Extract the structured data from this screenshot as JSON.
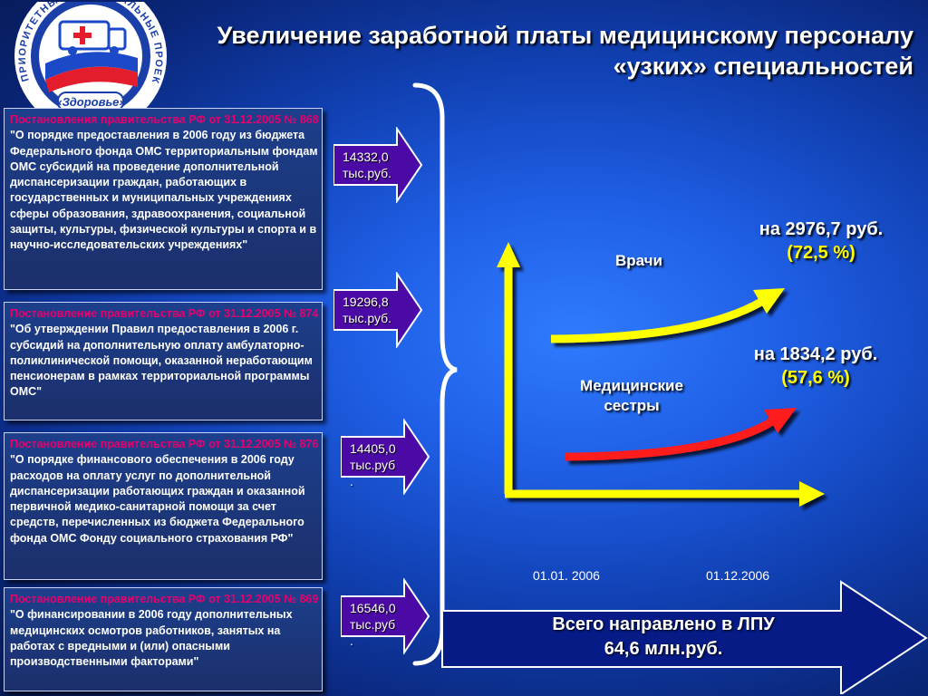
{
  "logo": {
    "ring_text": "ПРИОРИТЕТНЫЕ НАЦИОНАЛЬНЫЕ ПРОЕКТЫ",
    "bottom_text": "«Здоровье»"
  },
  "title": {
    "line1": "Увеличение заработной платы медицинскому персоналу",
    "line2": "«узких» специальностей"
  },
  "documents": [
    {
      "ref": "Постановления правительства РФ от 31.12.2005  № 868",
      "text": " \"О порядке предоставления в 2006 году из бюджета Федерального фонда ОМС территориальным фондам ОМС субсидий на проведение дополнительной диспансеризации граждан, работающих в государственных и муниципальных учреждениях  сферы образования, здравоохранения, социальной защиты, культуры, физической культуры и спорта и в научно-исследовательских учреждениях\""
    },
    {
      "ref": "Постановление правительства РФ от 31.12.2005 № 874",
      "text": " \"Об утверждении Правил предоставления в 2006 г. субсидий на дополнительную оплату амбулаторно-поликлинической помощи, оказанной неработающим пенсионерам в рамках территориальной программы ОМС\""
    },
    {
      "ref": "Постановление правительства РФ от 31.12.2005  № 876",
      "text": " \"О порядке финансового обеспечения в 2006 году   расходов на оплату услуг по дополнительной диспансеризации работающих граждан и оказанной первичной медико-санитарной помощи  за счет средств, перечисленных из бюджета Федерального фонда ОМС Фонду социального страхования РФ\""
    },
    {
      "ref": "Постановление правительства РФ от 31.12.2005  № 869",
      "text": " \"О финансировании в 2006 году дополнительных медицинских осмотров работников, занятых на работах с вредными и (или) опасными производственными факторами\""
    }
  ],
  "amounts": [
    {
      "line1": "14332,0",
      "line2": "тыс.руб."
    },
    {
      "line1": "19296,8",
      "line2": "тыс.руб."
    },
    {
      "line1": "14405,0",
      "line2": "тыс.руб",
      "line3": "."
    },
    {
      "line1": "16546,0",
      "line2": "тыс.руб",
      "line3": "."
    }
  ],
  "chart": {
    "series": [
      {
        "name": "Врачи",
        "increase": "на 2976,7 руб.",
        "percent": "(72,5 %)",
        "color": "#ffff00"
      },
      {
        "name_line1": "Медицинские",
        "name_line2": "сестры",
        "increase": "на 1834,2 руб.",
        "percent": "(57,6 %)",
        "color": "#ff1a1a"
      }
    ],
    "x_labels": [
      "01.01. 2006",
      "01.12.2006"
    ],
    "axis_color": "#ffff00"
  },
  "total": {
    "line1": "Всего направлено в ЛПУ",
    "line2": "64,6 млн.руб."
  },
  "colors": {
    "ref_text": "#e6006e",
    "arrow_fill": "#4b0aa5",
    "highlight": "#ffff00"
  }
}
